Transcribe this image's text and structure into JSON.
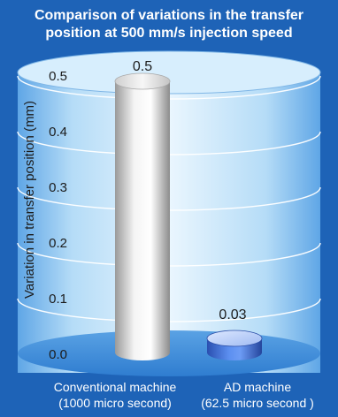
{
  "chart_data": {
    "type": "bar",
    "title_lines": [
      "Comparison of variations in the transfer",
      "position at 500 mm/s injection speed"
    ],
    "ylabel": "Variation in transfer position (mm)",
    "yticks": [
      "0.0",
      "0.1",
      "0.2",
      "0.3",
      "0.4",
      "0.5"
    ],
    "ylim": [
      0,
      0.5
    ],
    "grid": true,
    "categories": [
      {
        "line1": "Conventional machine",
        "line2": "(1000 micro second)"
      },
      {
        "line1": "AD machine",
        "line2": "(62.5 micro second )"
      }
    ],
    "values": [
      0.5,
      0.03
    ],
    "value_labels": [
      "0.5",
      "0.03"
    ],
    "colors": {
      "background": "#1e63b7",
      "cylinder_bg": "#8ec3ee",
      "bar1": "#e6e6e6",
      "bar2": "#3d6fd6"
    }
  }
}
